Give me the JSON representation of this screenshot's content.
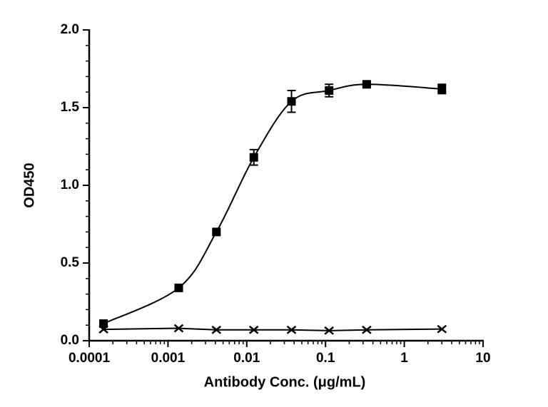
{
  "chart_data": {
    "type": "scatter",
    "x_label": "Antibody Conc. (μg/mL)",
    "y_label": "OD450",
    "x_scale": "log",
    "xlim": [
      0.0001,
      10
    ],
    "xticks": [
      0.0001,
      0.001,
      0.01,
      0.1,
      1,
      10
    ],
    "ylim": [
      0,
      2
    ],
    "yticks": [
      {
        "value": 0,
        "label": "0.0"
      },
      0.5,
      {
        "value": 1,
        "label": "1.0"
      },
      1.5,
      {
        "value": 2,
        "label": "2.0"
      }
    ],
    "x": [
      0.000152,
      0.00137,
      0.00412,
      0.0123,
      0.037,
      0.111,
      0.333,
      3
    ],
    "series": [
      {
        "color": "#000000",
        "marker": "square",
        "line": "smooth",
        "values": [
          0.11,
          0.34,
          0.7,
          1.18,
          1.54,
          1.61,
          1.65,
          1.62
        ],
        "errors": [
          0.01,
          0.01,
          0.01,
          0.05,
          0.07,
          0.04,
          0.01,
          0.03
        ]
      },
      {
        "color": "#000000",
        "marker": "x",
        "line": "straight",
        "values": [
          0.073,
          0.08,
          0.07,
          0.07,
          0.07,
          0.065,
          0.07,
          0.075
        ]
      }
    ]
  }
}
